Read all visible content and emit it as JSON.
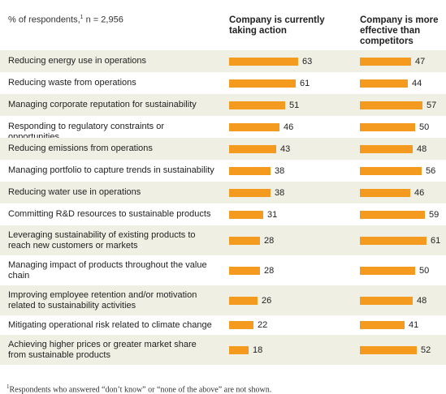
{
  "header": {
    "respondents_label": "% of respondents,",
    "respondents_sup": "1",
    "respondents_n": " n = 2,956",
    "col_a": "Company is currently taking action",
    "col_b": "Company is more effective than competitors"
  },
  "chart_data": {
    "type": "bar",
    "orientation": "horizontal",
    "categories": [
      "Reducing energy use in operations",
      "Reducing waste from operations",
      "Managing corporate reputation for sustainability",
      "Responding to regulatory constraints or opportunities",
      "Reducing emissions from operations",
      "Managing portfolio to capture trends in sustainability",
      "Reducing water use in operations",
      "Committing R&D resources to sustainable products",
      "Leveraging sustainability of existing products to reach new customers or markets",
      "Managing impact of products throughout the value chain",
      "Improving employee retention and/or motivation related to sustainability activities",
      "Mitigating operational risk related to climate change",
      "Achieving higher prices or greater market share from sustainable products"
    ],
    "series": [
      {
        "name": "Company is currently taking action",
        "values": [
          63,
          61,
          51,
          46,
          43,
          38,
          38,
          31,
          28,
          28,
          26,
          22,
          18
        ]
      },
      {
        "name": "Company is more effective than competitors",
        "values": [
          47,
          44,
          57,
          50,
          48,
          56,
          46,
          59,
          61,
          50,
          48,
          41,
          52
        ]
      }
    ],
    "bar_color": "#f39a1f"
  },
  "footnote": {
    "sup": "1",
    "text": "Respondents who answered “don’t know” or “none of the above” are not shown."
  }
}
